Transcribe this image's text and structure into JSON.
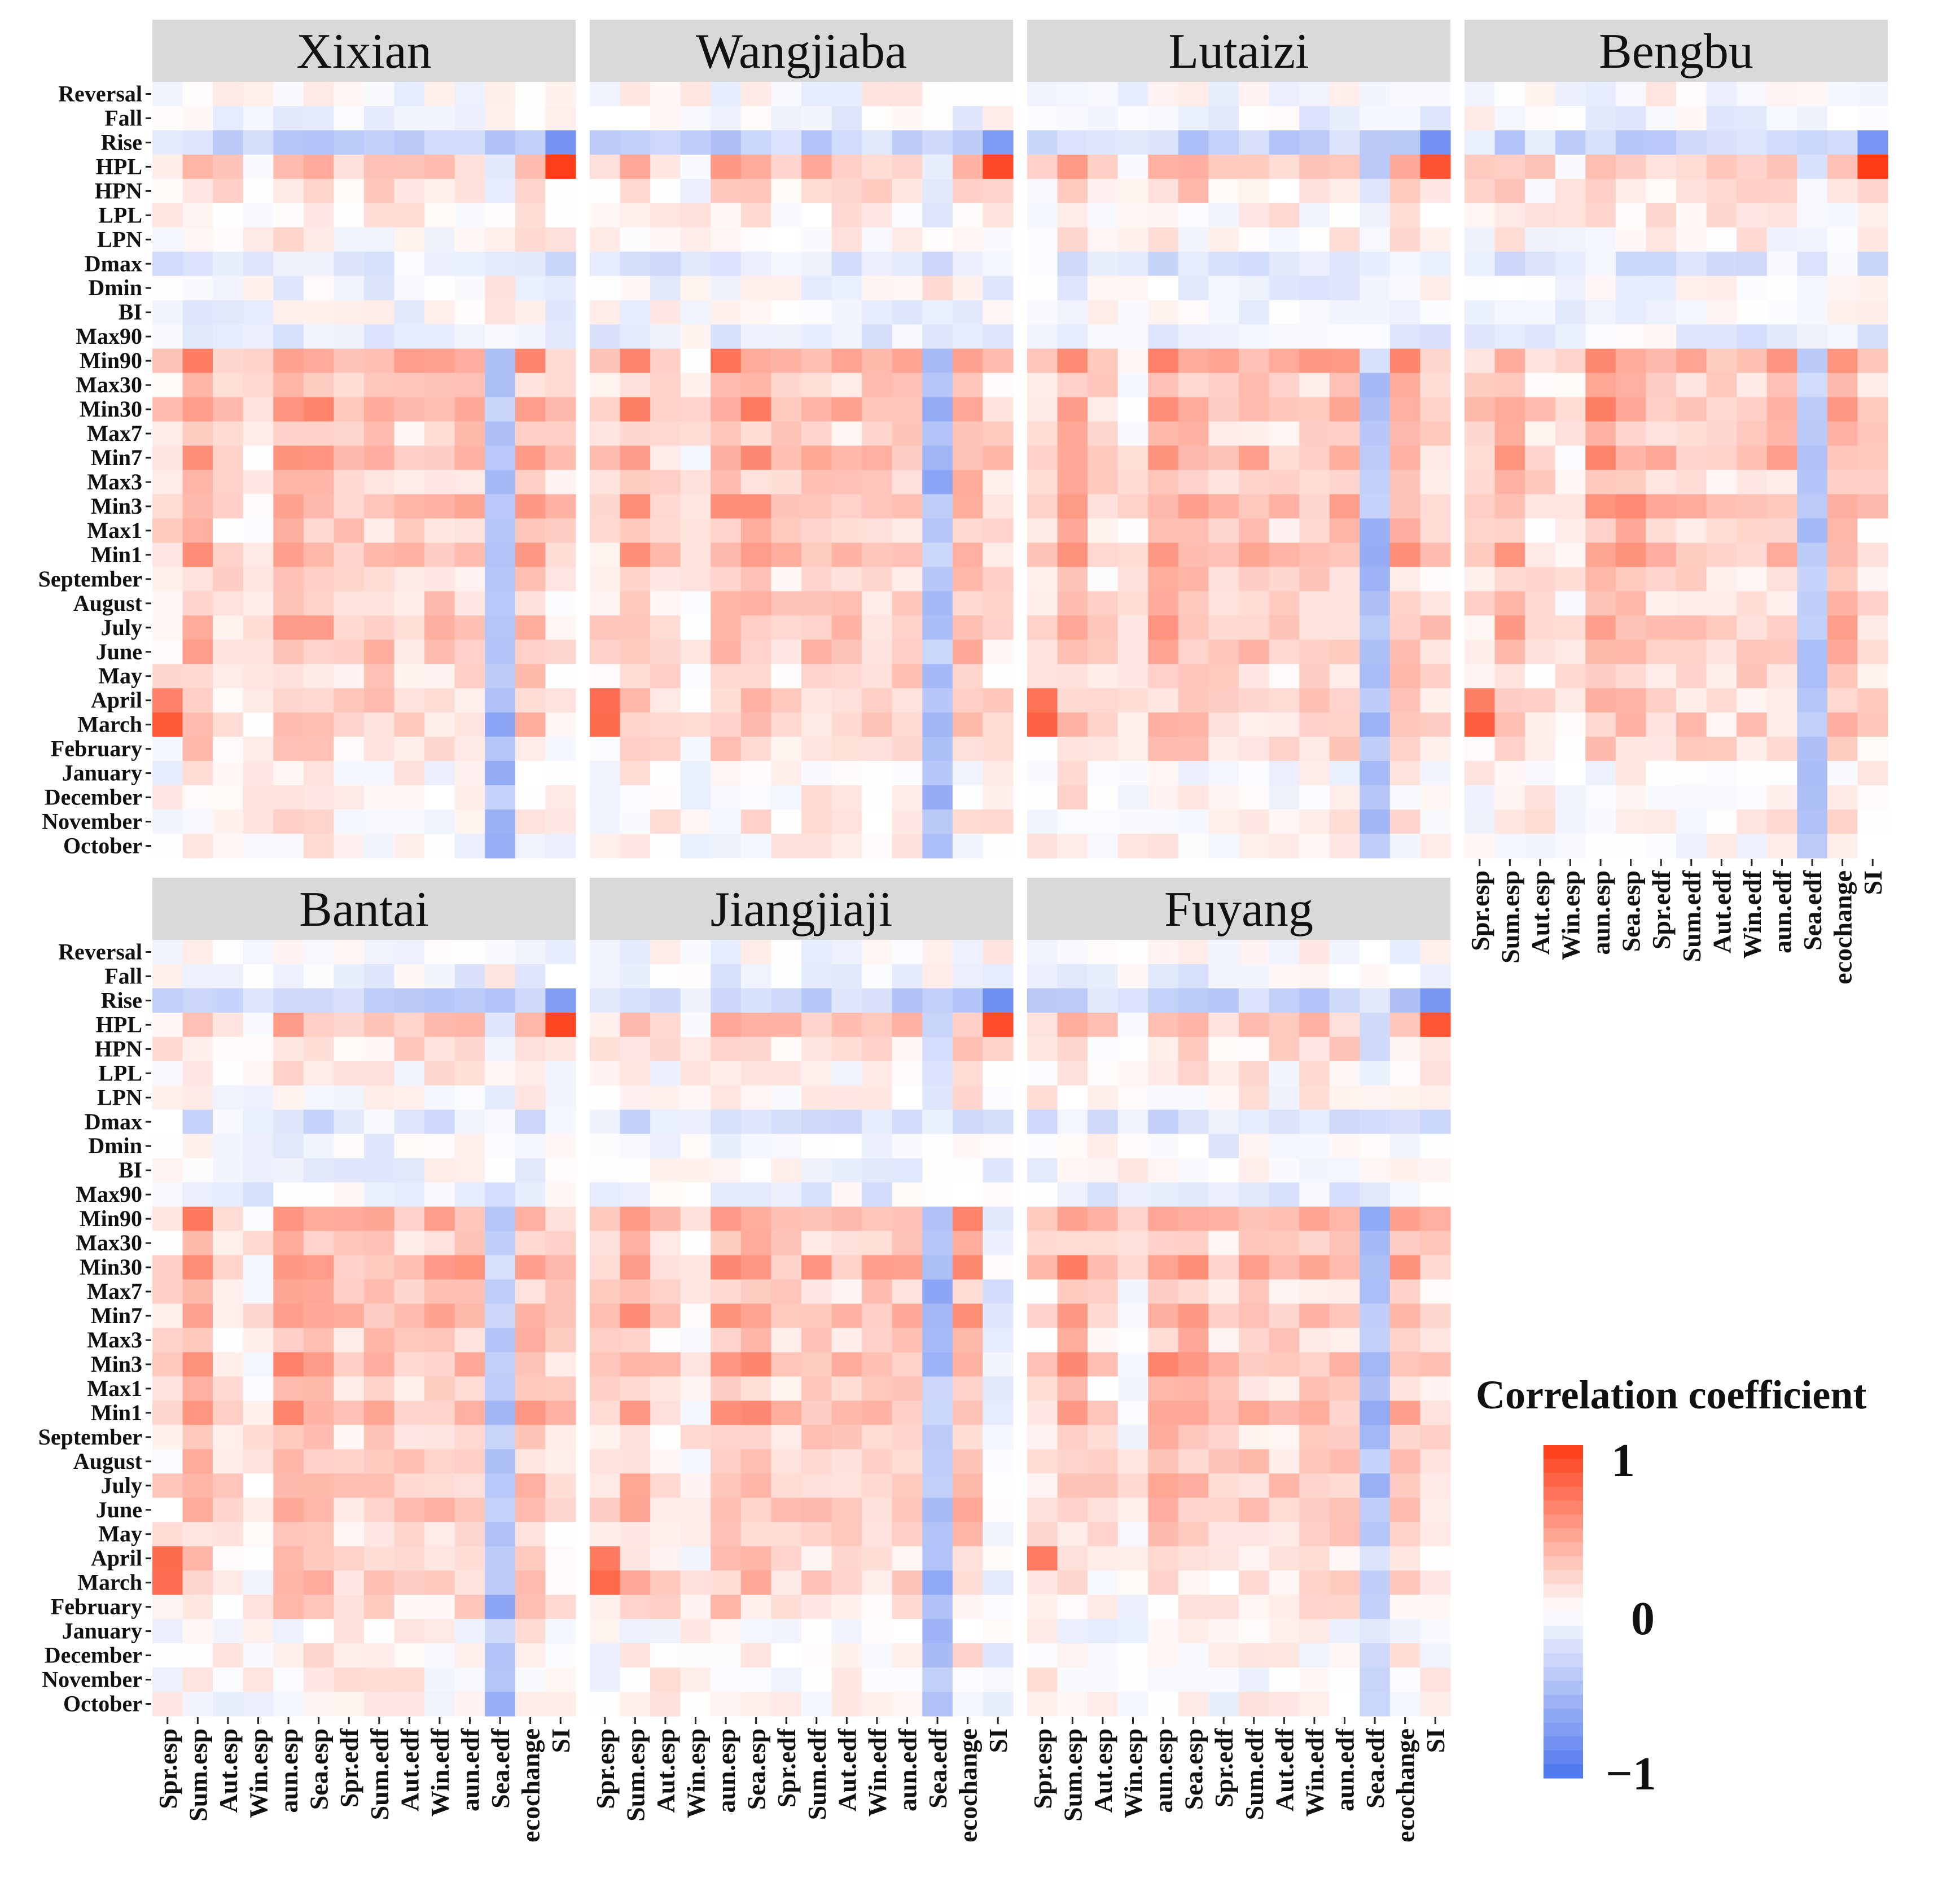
{
  "chart_data": {
    "type": "heatmap",
    "value_range": [
      -1,
      1
    ],
    "row_labels": [
      "Reversal",
      "Fall",
      "Rise",
      "HPL",
      "HPN",
      "LPL",
      "LPN",
      "Dmax",
      "Dmin",
      "BI",
      "Max90",
      "Min90",
      "Max30",
      "Min30",
      "Max7",
      "Min7",
      "Max3",
      "Min3",
      "Max1",
      "Min1",
      "September",
      "August",
      "July",
      "June",
      "May",
      "April",
      "March",
      "February",
      "January",
      "December",
      "November",
      "October"
    ],
    "col_labels": [
      "Spr.esp",
      "Sum.esp",
      "Aut.esp",
      "Win.esp",
      "aun.esp",
      "Sea.esp",
      "Spr.edf",
      "Sum.edf",
      "Aut.edf",
      "Win.edf",
      "aun.edf",
      "Sea.edf",
      "ecochange",
      "SI"
    ],
    "legend": {
      "title": "Correlation coefficient",
      "ticks": [
        "1",
        "0",
        "−1"
      ],
      "colors": {
        "low": "#4b73ee",
        "mid": "#ffffff",
        "high": "#fe3a14"
      }
    },
    "panels": [
      {
        "name": "Xixian",
        "show_row_labels": true,
        "show_col_labels": false,
        "template": 0,
        "seed": 3
      },
      {
        "name": "Wangjiaba",
        "show_row_labels": false,
        "show_col_labels": false,
        "template": 1,
        "seed": 7
      },
      {
        "name": "Lutaizi",
        "show_row_labels": false,
        "show_col_labels": false,
        "template": 1,
        "seed": 11
      },
      {
        "name": "Bengbu",
        "show_row_labels": false,
        "show_col_labels": true,
        "template": 1,
        "seed": 13
      },
      {
        "name": "Bantai",
        "show_row_labels": true,
        "show_col_labels": true,
        "template": 0,
        "seed": 17
      },
      {
        "name": "Jiangjiaji",
        "show_row_labels": false,
        "show_col_labels": true,
        "template": 1,
        "seed": 19
      },
      {
        "name": "Fuyang",
        "show_row_labels": false,
        "show_col_labels": true,
        "template": 2,
        "seed": 23
      }
    ],
    "row_profiles": {
      "Reversal": 0.0,
      "Fall": -0.1,
      "Rise": -0.35,
      "HPL": 0.45,
      "HPN": 0.25,
      "LPL": 0.1,
      "LPN": 0.08,
      "Dmax": -0.2,
      "Dmin": -0.08,
      "BI": -0.06,
      "Max90": -0.12,
      "Min90": 0.65,
      "Max30": 0.35,
      "Min30": 0.62,
      "Max7": 0.35,
      "Min7": 0.55,
      "Max3": 0.35,
      "Min3": 0.55,
      "Max1": 0.35,
      "Min1": 0.55,
      "September": 0.3,
      "August": 0.35,
      "July": 0.45,
      "June": 0.42,
      "May": 0.28,
      "April": 0.3,
      "March": 0.35,
      "February": 0.25,
      "January": 0.05,
      "December": 0.1,
      "November": 0.1,
      "October": 0.05
    },
    "col_profiles": {
      "Spr.esp": 0.35,
      "Sum.esp": 0.85,
      "Aut.esp": 0.4,
      "Win.esp": 0.15,
      "aun.esp": 0.9,
      "Sea.esp": 0.85,
      "Spr.edf": 0.55,
      "Sum.edf": 0.65,
      "Aut.edf": 0.55,
      "Win.edf": 0.6,
      "aun.edf": 0.65,
      "Sea.edf": -0.55,
      "ecochange": 0.8,
      "SI": 0.45
    },
    "special_cells": [
      {
        "row": "HPL",
        "col": "SI",
        "value": 1.0
      },
      {
        "row": "Rise",
        "col": "SI",
        "value": -0.8
      },
      {
        "row": "March",
        "col": "Spr.esp",
        "value": 0.85
      },
      {
        "row": "April",
        "col": "Spr.esp",
        "value": 0.75
      }
    ]
  }
}
